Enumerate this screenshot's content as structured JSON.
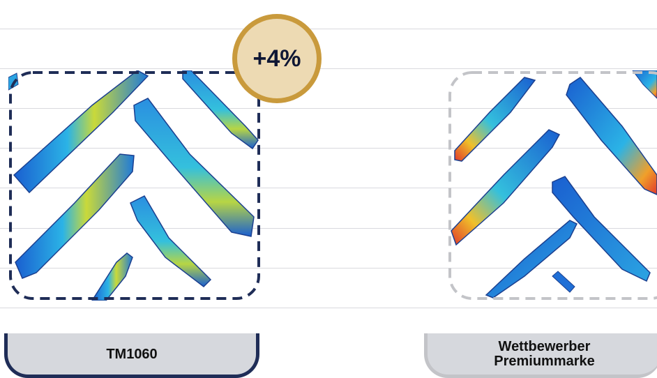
{
  "badge": {
    "text": "+4%",
    "ring_color": "#c99a3c",
    "fill_color": "#eddab3"
  },
  "left_panel": {
    "label": "TM1060",
    "border_color": "#1f2d57"
  },
  "right_panel": {
    "label_line1": "Wettbewerber",
    "label_line2": "Premiummarke",
    "border_color": "#c3c4c8"
  },
  "colors": {
    "grid": "#d9d9de",
    "label_bg": "#d6d8dd",
    "footprint_cool": "#1f6fd6",
    "footprint_mid": "#29b0e8",
    "footprint_warm": "#f1d12a",
    "footprint_hot": "#e0382b"
  }
}
